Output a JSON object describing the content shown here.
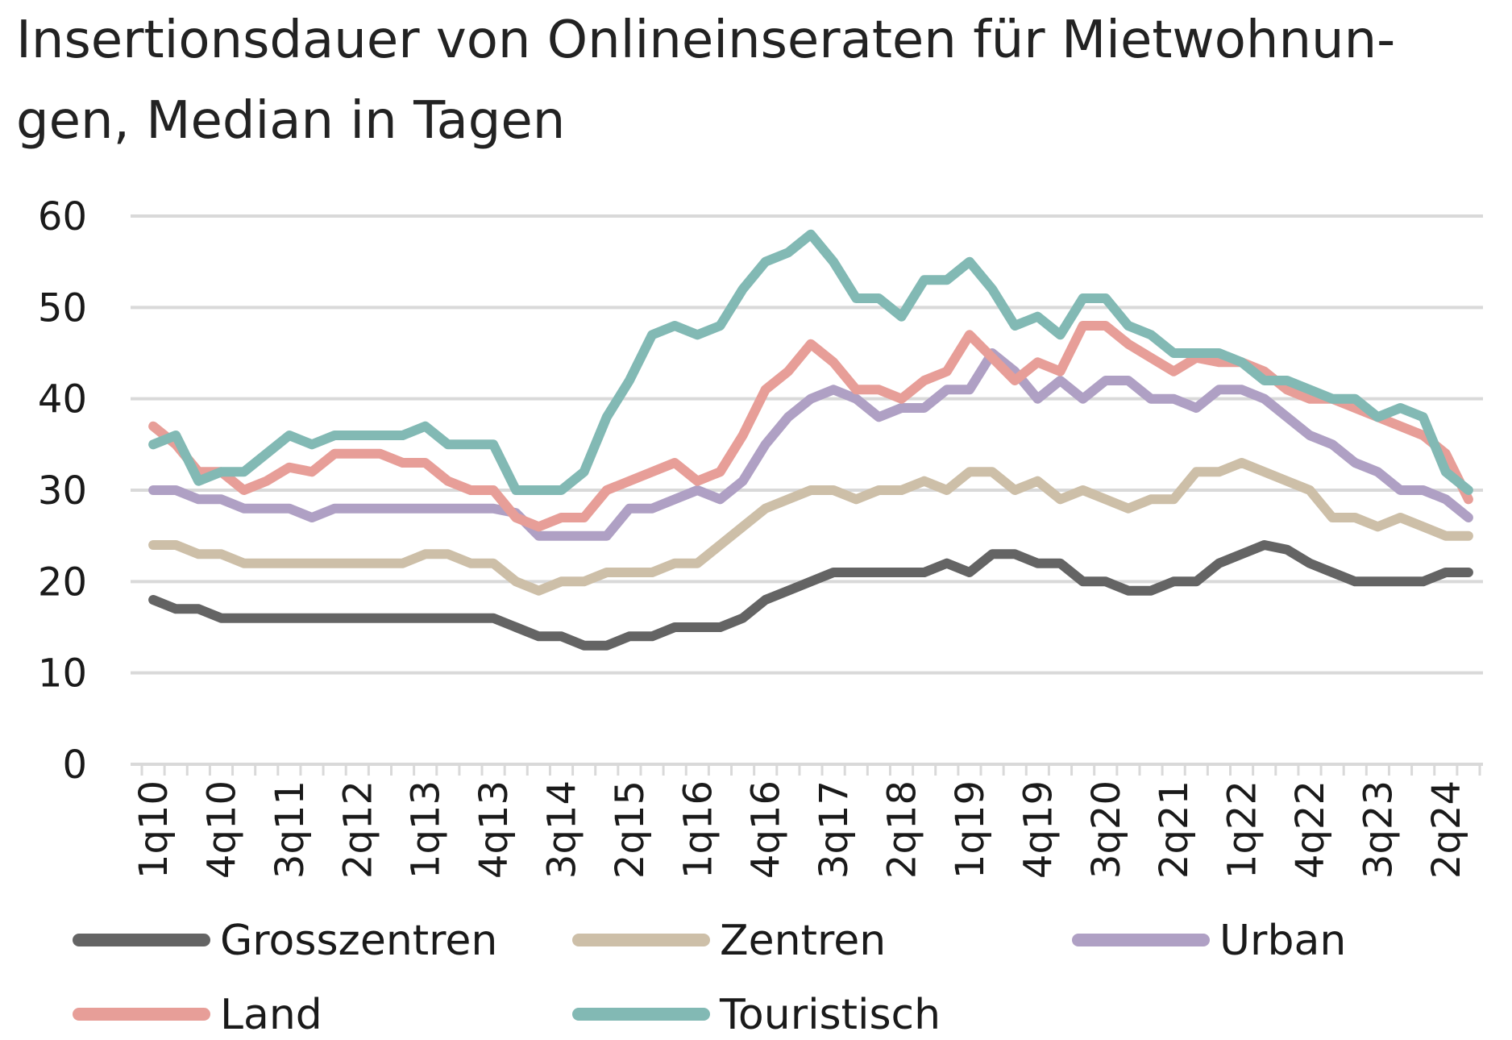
{
  "chart_data": {
    "type": "line",
    "title": "Insertionsdauer von Onlineinseraten für Mietwohnun-gen, Median in Tagen",
    "title_lines": [
      "Insertionsdauer von Onlineinseraten für Mietwohnun-",
      "gen, Median in Tagen"
    ],
    "ylim": [
      0,
      60
    ],
    "yticks": [
      0,
      10,
      20,
      30,
      40,
      50,
      60
    ],
    "grid": true,
    "legend_position": "bottom",
    "x": [
      "1q10",
      "2q10",
      "3q10",
      "4q10",
      "1q11",
      "2q11",
      "3q11",
      "4q11",
      "1q12",
      "2q12",
      "3q12",
      "4q12",
      "1q13",
      "2q13",
      "3q13",
      "4q13",
      "1q14",
      "2q14",
      "3q14",
      "4q14",
      "1q15",
      "2q15",
      "3q15",
      "4q15",
      "1q16",
      "2q16",
      "3q16",
      "4q16",
      "1q17",
      "2q17",
      "3q17",
      "4q17",
      "1q18",
      "2q18",
      "3q18",
      "4q18",
      "1q19",
      "2q19",
      "3q19",
      "4q19",
      "1q20",
      "2q20",
      "3q20",
      "4q20",
      "1q21",
      "2q21",
      "3q21",
      "4q21",
      "1q22",
      "2q22",
      "3q22",
      "4q22",
      "1q23",
      "2q23",
      "3q23",
      "4q23",
      "1q24",
      "2q24",
      "3q24"
    ],
    "xtick_labels": [
      "1q10",
      "4q10",
      "3q11",
      "2q12",
      "1q13",
      "4q13",
      "3q14",
      "2q15",
      "1q16",
      "4q16",
      "3q17",
      "2q18",
      "1q19",
      "4q19",
      "3q20",
      "2q21",
      "1q22",
      "4q22",
      "3q23",
      "2q24"
    ],
    "series": [
      {
        "name": "Grosszentren",
        "color": "#646464",
        "values": [
          18,
          17,
          17,
          16,
          16,
          16,
          16,
          16,
          16,
          16,
          16,
          16,
          16,
          16,
          16,
          16,
          15,
          14,
          14,
          13,
          13,
          14,
          14,
          15,
          15,
          15,
          16,
          18,
          19,
          20,
          21,
          21,
          21,
          21,
          21,
          22,
          21,
          23,
          23,
          22,
          22,
          20,
          20,
          19,
          19,
          20,
          20,
          22,
          23,
          24,
          23.5,
          22,
          21,
          20,
          20,
          20,
          20,
          21,
          21
        ]
      },
      {
        "name": "Zentren",
        "color": "#cdbfa8",
        "values": [
          24,
          24,
          23,
          23,
          22,
          22,
          22,
          22,
          22,
          22,
          22,
          22,
          23,
          23,
          22,
          22,
          20,
          19,
          20,
          20,
          21,
          21,
          21,
          22,
          22,
          24,
          26,
          28,
          29,
          30,
          30,
          29,
          30,
          30,
          31,
          30,
          32,
          32,
          30,
          31,
          29,
          30,
          29,
          28,
          29,
          29,
          32,
          32,
          33,
          32,
          31,
          30,
          27,
          27,
          26,
          27,
          26,
          25,
          25
        ]
      },
      {
        "name": "Urban",
        "color": "#afa0c4",
        "values": [
          30,
          30,
          29,
          29,
          28,
          28,
          28,
          27,
          28,
          28,
          28,
          28,
          28,
          28,
          28,
          28,
          27.5,
          25,
          25,
          25,
          25,
          28,
          28,
          29,
          30,
          29,
          31,
          35,
          38,
          40,
          41,
          40,
          38,
          39,
          39,
          41,
          41,
          45,
          43,
          40,
          42,
          40,
          42,
          42,
          40,
          40,
          39,
          41,
          41,
          40,
          38,
          36,
          35,
          33,
          32,
          30,
          30,
          29,
          27
        ]
      },
      {
        "name": "Land",
        "color": "#e79e98",
        "values": [
          37,
          35,
          32,
          32,
          30,
          31,
          32.5,
          32,
          34,
          34,
          34,
          33,
          33,
          31,
          30,
          30,
          27,
          26,
          27,
          27,
          30,
          31,
          32,
          33,
          31,
          32,
          36,
          41,
          43,
          46,
          44,
          41,
          41,
          40,
          42,
          43,
          47,
          44.5,
          42,
          44,
          43,
          48,
          48,
          46,
          44.5,
          43,
          44.5,
          44,
          44,
          43,
          41,
          40,
          40,
          39,
          38,
          37,
          36,
          34,
          29
        ]
      },
      {
        "name": "Touristisch",
        "color": "#82b9b4",
        "values": [
          35,
          36,
          31,
          32,
          32,
          34,
          36,
          35,
          36,
          36,
          36,
          36,
          37,
          35,
          35,
          35,
          30,
          30,
          30,
          32,
          38,
          42,
          47,
          48,
          47,
          48,
          52,
          55,
          56,
          58,
          55,
          51,
          51,
          49,
          53,
          53,
          55,
          52,
          48,
          49,
          47,
          51,
          51,
          48,
          47,
          45,
          45,
          45,
          44,
          42,
          42,
          41,
          40,
          40,
          38,
          39,
          38,
          32,
          30
        ]
      }
    ]
  }
}
